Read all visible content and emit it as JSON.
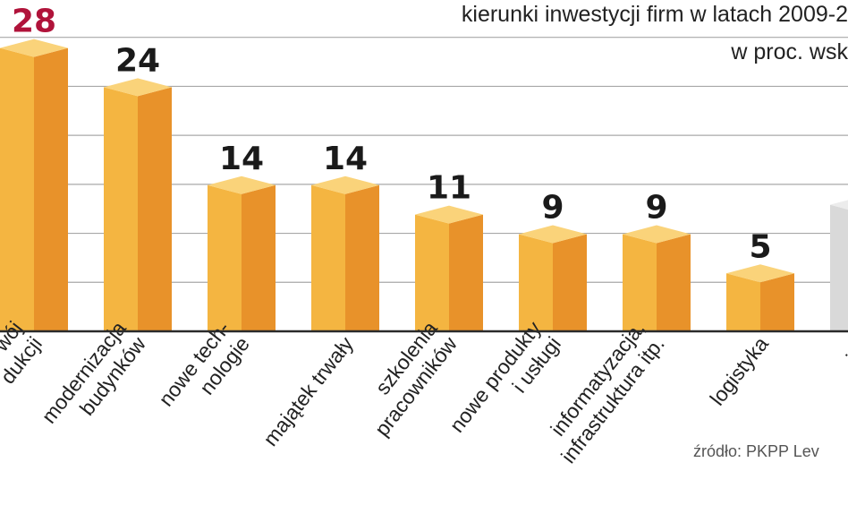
{
  "header": {
    "title": "kierunki inwestycji firm w latach 2009-2",
    "subtitle": "w proc. wsk"
  },
  "source": "źródło: PKPP Lev",
  "chart_data": {
    "type": "bar",
    "title": "kierunki inwestycji firm w latach 2009-2",
    "subtitle": "w proc. wsk",
    "xlabel": "",
    "ylabel": "",
    "ylim": [
      0,
      30
    ],
    "grid": true,
    "categories": [
      "rozwój produkcji",
      "modernizacja budynków",
      "nowe tech-nologie",
      "majątek trwały",
      "szkolenia pracowników",
      "nowe produkty i usługi",
      "informatyzacja, infrastruktura itp.",
      "logistyka",
      "inn"
    ],
    "tick_labels": [
      [
        "wój",
        "dukcji"
      ],
      [
        "modernizacja",
        "budynków"
      ],
      [
        "nowe tech-",
        "nologie"
      ],
      [
        "majątek trwały"
      ],
      [
        "szkolenia",
        "pracowników"
      ],
      [
        "nowe produkty",
        "i usługi"
      ],
      [
        "informatyzacja,",
        "infrastruktura itp."
      ],
      [
        "logistyka"
      ],
      [
        "inn"
      ]
    ],
    "values": [
      28,
      24,
      14,
      14,
      11,
      9,
      9,
      5,
      12
    ],
    "value_labels": [
      "28",
      "24",
      "14",
      "14",
      "11",
      "9",
      "9",
      "5",
      ""
    ],
    "colors": {
      "bar_front": "#f4b541",
      "bar_side": "#e8922a",
      "bar_top": "#fad37a",
      "last_bar_front": "#d9d9d9",
      "highlight_label": "#b0133a",
      "grid": "#a8a8a8",
      "baseline": "#2a2a2a"
    }
  }
}
